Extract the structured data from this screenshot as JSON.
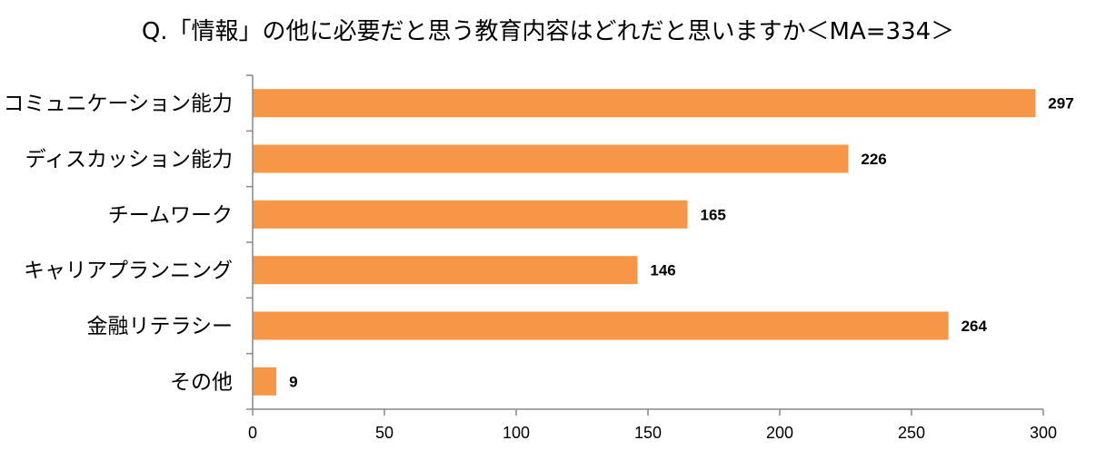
{
  "chart_data": {
    "type": "bar",
    "orientation": "horizontal",
    "title": "Q.「情報」の他に必要だと思う教育内容はどれだと思いますか＜MA=334＞",
    "categories": [
      "コミュニケーション能力",
      "ディスカッション能力",
      "チームワーク",
      "キャリアプランニング",
      "金融リテラシー",
      "その他"
    ],
    "values": [
      297,
      226,
      165,
      146,
      264,
      9
    ],
    "xlim": [
      0,
      300
    ],
    "xticks": [
      0,
      50,
      100,
      150,
      200,
      250,
      300
    ],
    "xlabel": "",
    "ylabel": "",
    "bar_color": "#f79646",
    "grid": false,
    "legend": "none"
  }
}
